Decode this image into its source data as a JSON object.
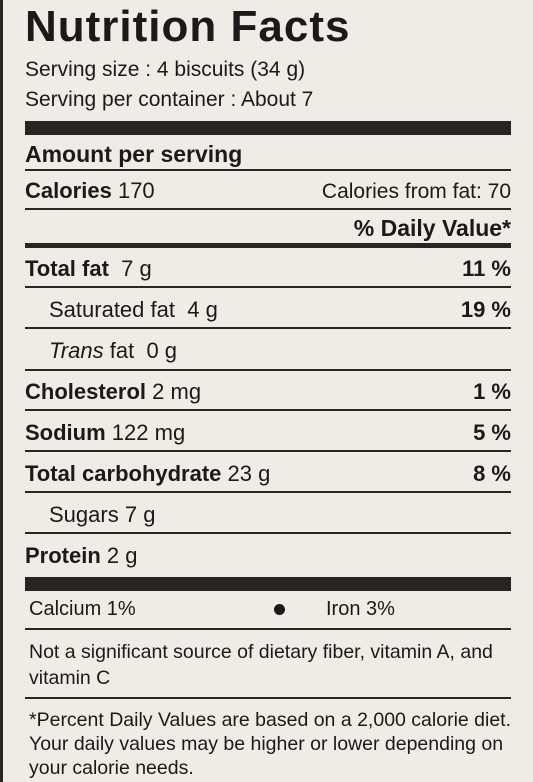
{
  "title": "Nutrition Facts",
  "serving_size": "Serving size : 4 biscuits (34 g)",
  "servings_per_container": "Serving per container : About 7",
  "amount_per_serving": "Amount per serving",
  "calories": {
    "label": "Calories",
    "value": "170",
    "from_fat": "Calories from fat: 70"
  },
  "daily_value_header": "% Daily Value*",
  "nutrients": [
    {
      "label": "Total fat",
      "amount": "7 g",
      "dv": "11 %"
    },
    {
      "label": "Saturated fat",
      "amount": "4 g",
      "dv": "19 %"
    },
    {
      "label": "Trans",
      "label_rest": "fat",
      "amount": "0 g",
      "dv": ""
    },
    {
      "label": "Cholesterol",
      "amount": "2 mg",
      "dv": "1 %"
    },
    {
      "label": "Sodium",
      "amount": "122 mg",
      "dv": "5 %"
    },
    {
      "label": "Total carbohydrate",
      "amount": "23 g",
      "dv": "8 %"
    },
    {
      "label": "Sugars",
      "amount": "7 g",
      "dv": ""
    },
    {
      "label": "Protein",
      "amount": "2 g",
      "dv": ""
    }
  ],
  "minerals": {
    "calcium": "Calcium 1%",
    "iron": "Iron 3%"
  },
  "note_line1": "Not a significant source of dietary fiber, vitamin A, and",
  "note_line2": "vitamin C",
  "footnote_line1": "*Percent Daily Values are based on a 2,000 calorie diet.",
  "footnote_line2": "Your daily values may be higher or lower depending on",
  "footnote_line3": "your calorie needs."
}
